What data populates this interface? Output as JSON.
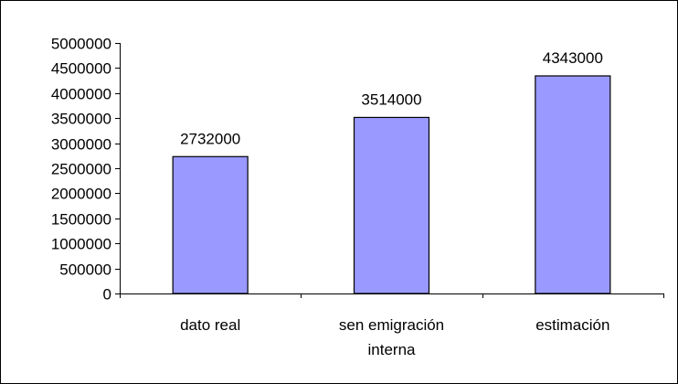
{
  "chart_data": {
    "type": "bar",
    "categories": [
      [
        "dato real"
      ],
      [
        "sen emigración",
        "interna"
      ],
      [
        "estimación"
      ]
    ],
    "values": [
      2732000,
      3514000,
      4343000
    ],
    "data_labels": [
      "2732000",
      "3514000",
      "4343000"
    ],
    "ylim": [
      0,
      5000000
    ],
    "yticks": [
      0,
      500000,
      1000000,
      1500000,
      2000000,
      2500000,
      3000000,
      3500000,
      4000000,
      4500000,
      5000000
    ],
    "ytick_labels": [
      "0",
      "500000",
      "1000000",
      "1500000",
      "2000000",
      "2500000",
      "3000000",
      "3500000",
      "4000000",
      "4500000",
      "5000000"
    ],
    "grid": false,
    "legend": "none",
    "bar_color": "#9999FF",
    "bar_edge_color": "#000000"
  }
}
